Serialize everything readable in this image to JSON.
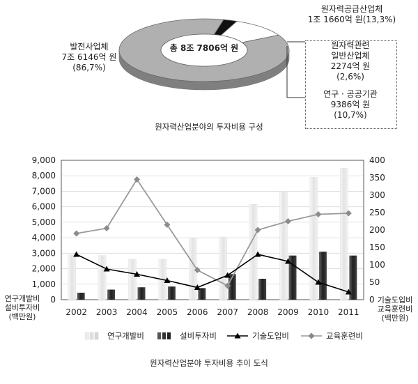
{
  "pie_section": {
    "center_label": "총 8조 7806억 원",
    "caption": "원자력산업분야의 투자비용 구성",
    "segments": [
      {
        "name": "발전사업체",
        "amount": "7조 6146억 원",
        "share": "(86,7%)",
        "value": 86.7,
        "color": "#b0b0b0"
      },
      {
        "name": "원자력공급산업체",
        "amount": "1조 1660억 원(13,3%)",
        "value": 13.3,
        "color": "#ffffff"
      },
      {
        "name": "원자력관련 일반산업체",
        "name_lines": [
          "원자력관련",
          "일반산업체"
        ],
        "amount": "2274억 원",
        "share": "(2,6%)",
        "value": 2.6,
        "color": "#111111"
      },
      {
        "name": "연구 · 공공기관",
        "amount": "9386억 원",
        "share": "(10,7%)",
        "value": 10.7,
        "color": "#ffffff"
      }
    ]
  },
  "chart_data": [
    {
      "type": "pie",
      "title": "원자력산업분야의 투자비용 구성",
      "center_label": "총 8조 7806억 원",
      "categories": [
        "발전사업체",
        "원자력관련 일반산업체",
        "연구 · 공공기관"
      ],
      "values": [
        86.7,
        2.6,
        10.7
      ],
      "group_label": "원자력공급산업체",
      "group_value": 13.3
    },
    {
      "type": "bar",
      "title": "원자력산업분야 투자비용 추이 도식",
      "categories": [
        "2002",
        "2003",
        "2004",
        "2005",
        "2006",
        "2007",
        "2008",
        "2009",
        "2010",
        "2011"
      ],
      "y_left": {
        "label": [
          "연구개발비",
          "설비투자비",
          "(백만원)"
        ],
        "ylim": [
          0,
          9000
        ],
        "ticks": [
          "0",
          "1,000",
          "2,000",
          "3,000",
          "4,000",
          "5,000",
          "6,000",
          "7,000",
          "8,000",
          "9,000"
        ]
      },
      "y_right": {
        "label": [
          "기술도입비",
          "교육훈련비",
          "(백만원)"
        ],
        "ylim": [
          0,
          400
        ],
        "ticks": [
          "0",
          "50",
          "100",
          "150",
          "200",
          "250",
          "300",
          "350",
          "400"
        ]
      },
      "series": [
        {
          "name": "연구개발비",
          "kind": "bar",
          "axis": "left",
          "color": "#e6e6e6",
          "values": [
            2900,
            2850,
            2600,
            2600,
            4000,
            4050,
            6150,
            7000,
            7900,
            8500
          ]
        },
        {
          "name": "설비투자비",
          "kind": "bar",
          "axis": "left",
          "color": "#333333",
          "values": [
            450,
            650,
            800,
            850,
            750,
            1650,
            1350,
            2850,
            3100,
            2850
          ]
        },
        {
          "name": "기술도입비",
          "kind": "line",
          "axis": "right",
          "marker": "triangle",
          "color": "#000000",
          "values": [
            130,
            88,
            73,
            55,
            35,
            70,
            130,
            110,
            50,
            22
          ]
        },
        {
          "name": "교육훈련비",
          "kind": "line",
          "axis": "right",
          "marker": "diamond",
          "color": "#999999",
          "values": [
            190,
            205,
            345,
            215,
            85,
            40,
            200,
            225,
            245,
            248
          ]
        }
      ]
    }
  ]
}
